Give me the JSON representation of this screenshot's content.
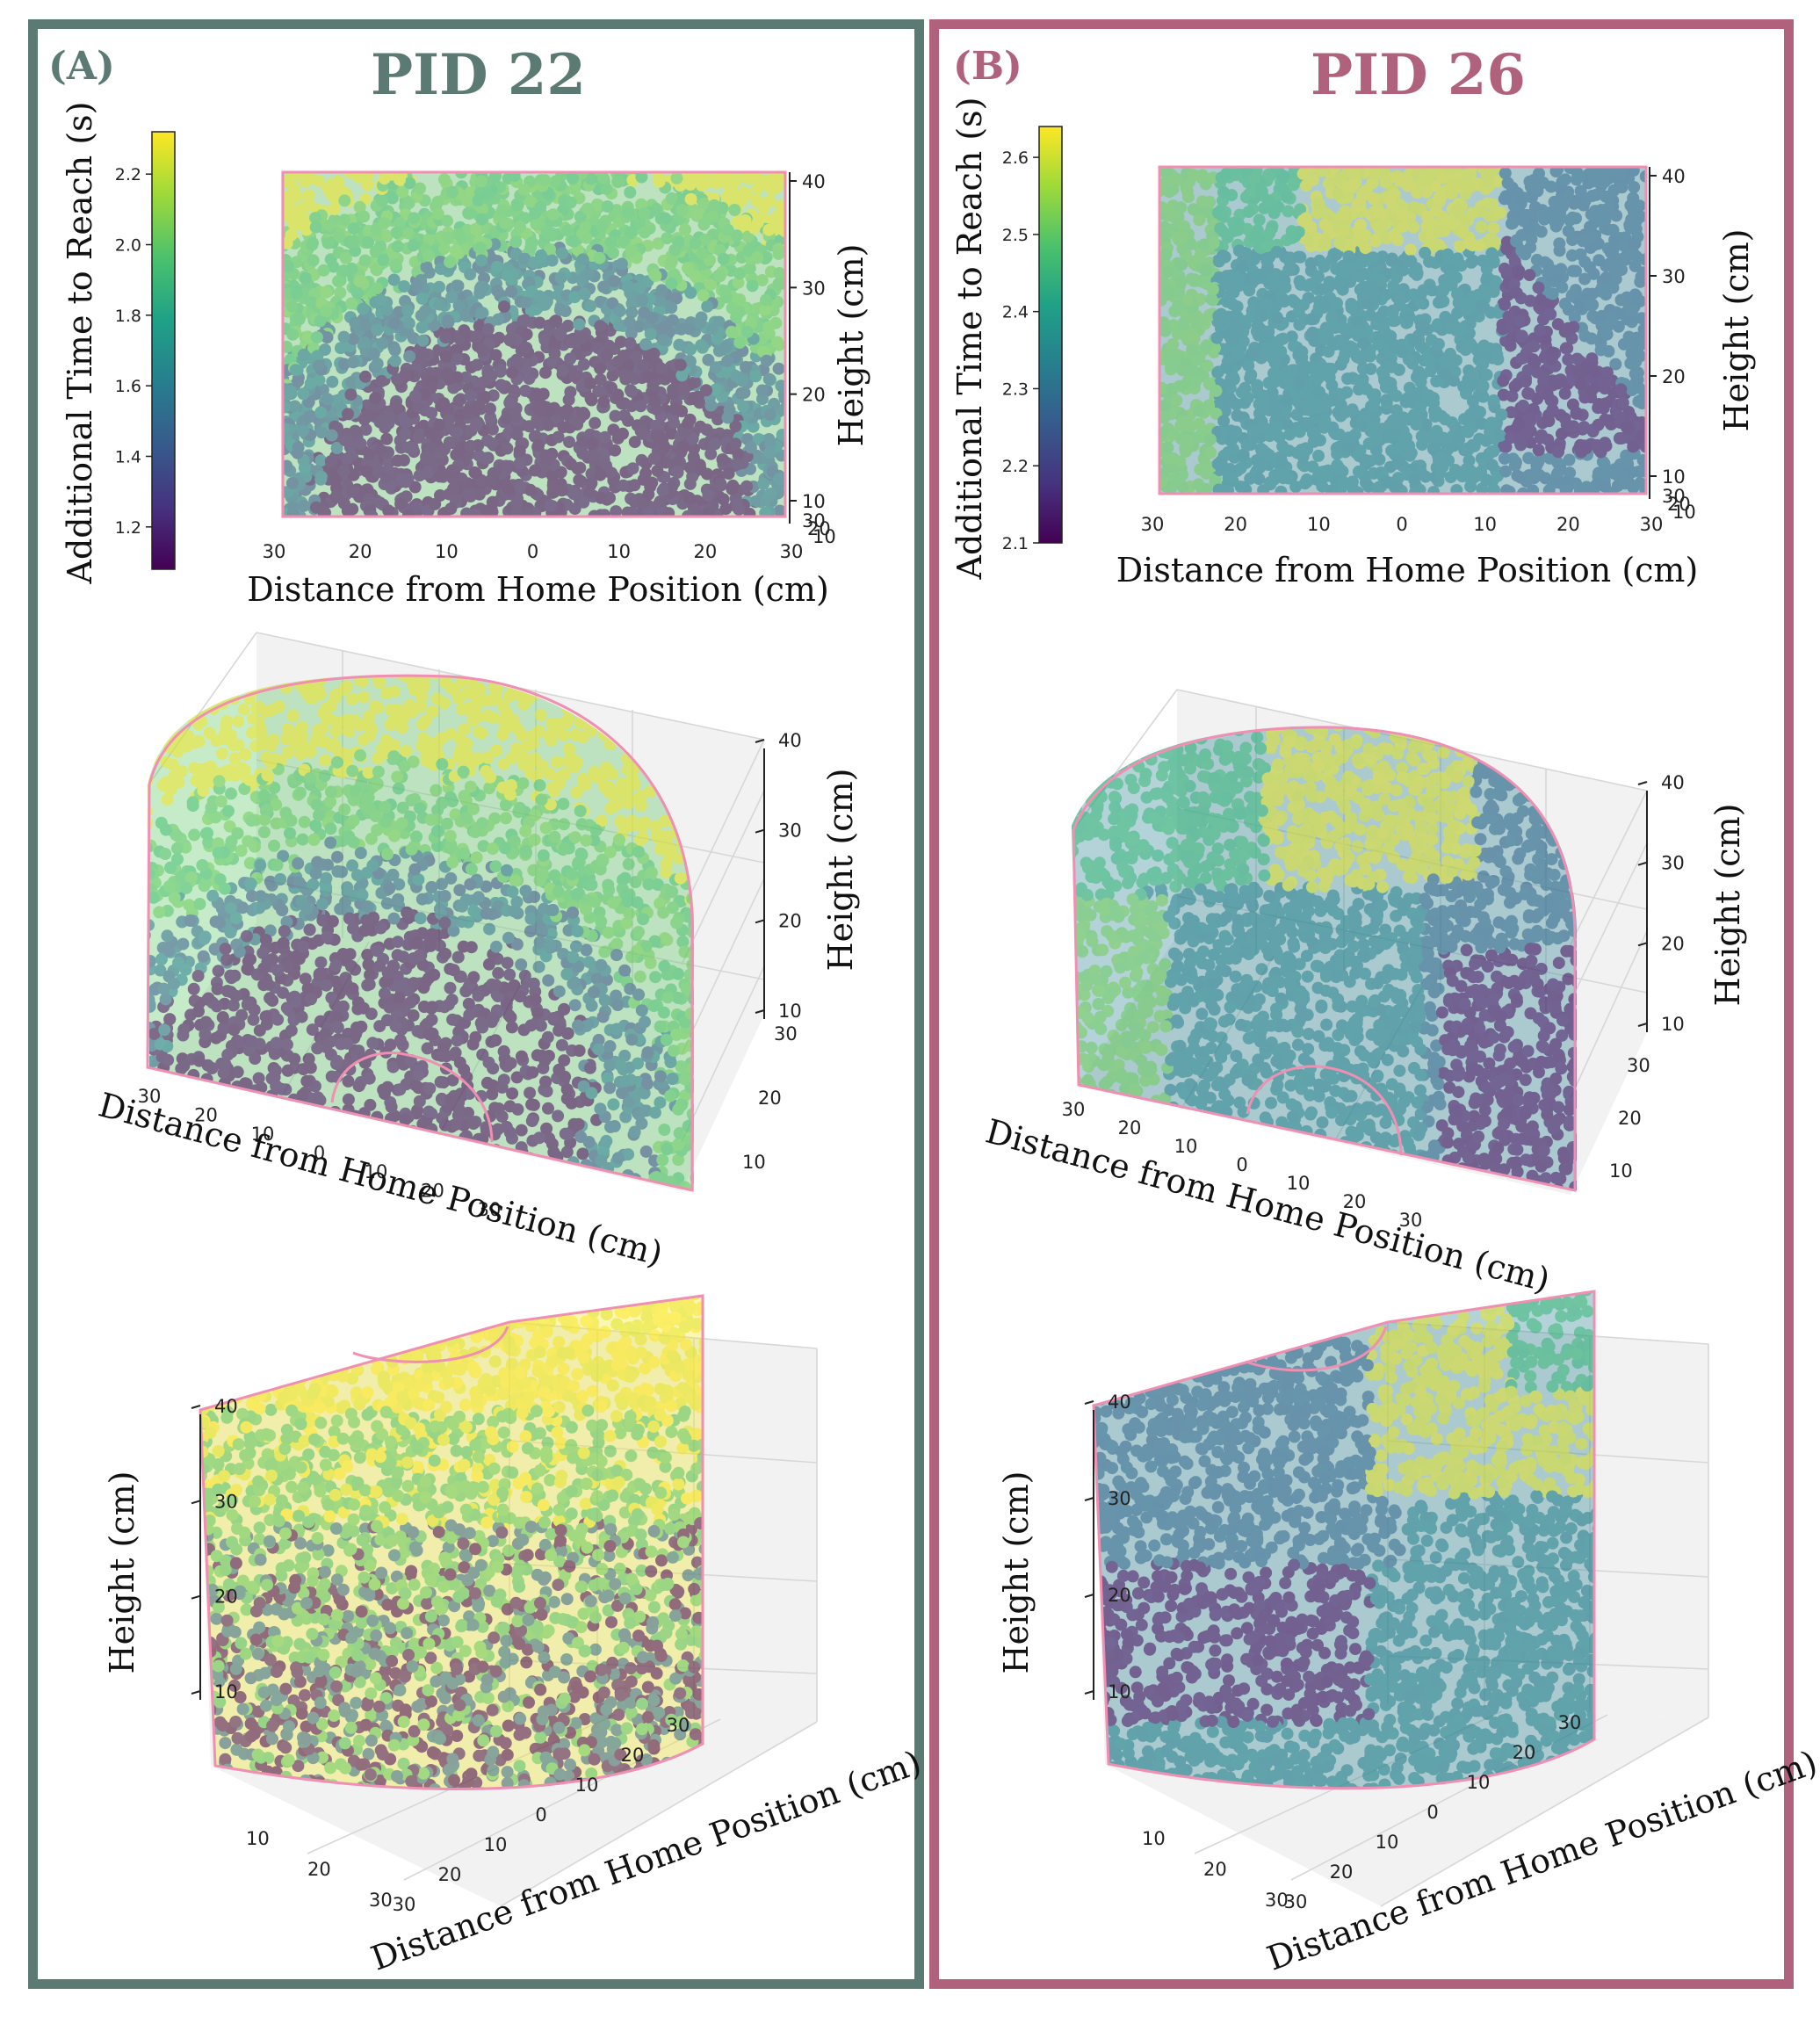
{
  "panels": [
    {
      "letter": "(A)",
      "title": "PID 22",
      "frame_color": "#5b7a73",
      "colorbar": {
        "label": "Additional Time to Reach (s)",
        "min": 1.08,
        "max": 2.32,
        "ticks": [
          "1.2",
          "1.4",
          "1.6",
          "1.8",
          "2.0",
          "2.2"
        ],
        "colormap": "viridis"
      }
    },
    {
      "letter": "(B)",
      "title": "PID 26",
      "frame_color": "#b0617b",
      "colorbar": {
        "label": "Additional Time to Reach (s)",
        "min": 2.1,
        "max": 2.64,
        "ticks": [
          "2.1",
          "2.2",
          "2.3",
          "2.4",
          "2.5",
          "2.6"
        ],
        "colormap": "viridis"
      }
    }
  ],
  "axes": {
    "distance_label": "Distance from Home Position (cm)",
    "height_label": "Height (cm)",
    "distance_ticks": [
      "30",
      "20",
      "10",
      "0",
      "10",
      "20",
      "30"
    ],
    "depth_ticks": [
      "10",
      "20",
      "30"
    ],
    "height_ticks": [
      "10",
      "20",
      "30",
      "40"
    ],
    "height_ticks_top": [
      "40",
      "30",
      "20",
      "10"
    ],
    "top_overlap_ticks": [
      "30",
      "20",
      "10"
    ]
  },
  "chart_data": [
    {
      "type": "scatter",
      "subtype": "3d-scatter (3 views: front, perspective, rear)",
      "panel": "A",
      "title": "PID 22",
      "xlabel": "Distance from Home Position (cm)",
      "ylabel": "Distance from Home Position (cm)",
      "zlabel": "Height (cm)",
      "colorbar_label": "Additional Time to Reach (s)",
      "xlim": [
        -30,
        30
      ],
      "ylim": [
        0,
        30
      ],
      "zlim": [
        0,
        40
      ],
      "color_range": [
        1.08,
        2.32
      ],
      "colormap": "viridis",
      "pattern": "concentric shells around home position",
      "regions": [
        {
          "description": "inner hemisphere near home",
          "value": 1.1
        },
        {
          "description": "first shell",
          "value": 1.5
        },
        {
          "description": "middle shell",
          "value": 2.0
        },
        {
          "description": "outer region / top",
          "value": 2.3
        }
      ]
    },
    {
      "type": "scatter",
      "subtype": "3d-scatter (3 views: front, perspective, rear)",
      "panel": "B",
      "title": "PID 26",
      "xlabel": "Distance from Home Position (cm)",
      "ylabel": "Distance from Home Position (cm)",
      "zlabel": "Height (cm)",
      "colorbar_label": "Additional Time to Reach (s)",
      "xlim": [
        -30,
        30
      ],
      "ylim": [
        0,
        30
      ],
      "zlim": [
        0,
        40
      ],
      "color_range": [
        2.1,
        2.64
      ],
      "colormap": "viridis",
      "pattern": "block regions",
      "regions": [
        {
          "description": "left column",
          "value": 2.52
        },
        {
          "description": "upper-left block",
          "value": 2.46
        },
        {
          "description": "upper-center block",
          "value": 2.62
        },
        {
          "description": "central block",
          "value": 2.34
        },
        {
          "description": "upper-right block",
          "value": 2.28
        },
        {
          "description": "lower-right block",
          "value": 2.12
        }
      ]
    }
  ]
}
